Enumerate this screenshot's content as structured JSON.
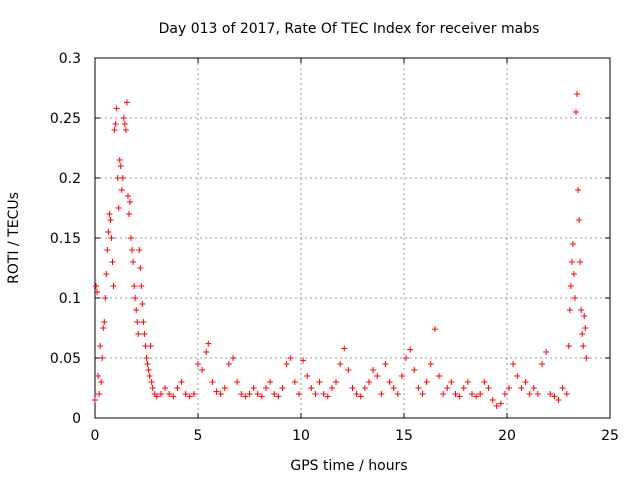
{
  "chart_data": {
    "type": "scatter",
    "title": "Day 013 of 2017, Rate Of TEC Index for receiver mabs",
    "xlabel": "GPS time / hours",
    "ylabel": "ROTI / TECUs",
    "xlim": [
      0,
      25
    ],
    "ylim": [
      0,
      0.3
    ],
    "xticks": [
      0,
      5,
      10,
      15,
      20,
      25
    ],
    "xtick_labels": [
      "0",
      "5",
      "10",
      "15",
      "20",
      "25"
    ],
    "yticks": [
      0,
      0.05,
      0.1,
      0.15,
      0.2,
      0.25,
      0.3
    ],
    "ytick_labels": [
      "0",
      "0.05",
      "0.1",
      "0.15",
      "0.2",
      "0.25",
      "0.3"
    ],
    "grid": true,
    "marker": "+",
    "series_color": "#ff0000",
    "series": [
      {
        "points": [
          [
            0.0,
            0.015
          ],
          [
            0.05,
            0.11
          ],
          [
            0.1,
            0.105
          ],
          [
            0.15,
            0.035
          ],
          [
            0.2,
            0.02
          ],
          [
            0.25,
            0.06
          ],
          [
            0.3,
            0.03
          ],
          [
            0.35,
            0.05
          ],
          [
            0.4,
            0.075
          ],
          [
            0.45,
            0.08
          ],
          [
            0.5,
            0.1
          ],
          [
            0.55,
            0.12
          ],
          [
            0.6,
            0.14
          ],
          [
            0.65,
            0.155
          ],
          [
            0.7,
            0.17
          ],
          [
            0.75,
            0.165
          ],
          [
            0.8,
            0.15
          ],
          [
            0.85,
            0.13
          ],
          [
            0.9,
            0.11
          ],
          [
            0.95,
            0.24
          ],
          [
            1.0,
            0.245
          ],
          [
            1.05,
            0.258
          ],
          [
            1.1,
            0.2
          ],
          [
            1.15,
            0.175
          ],
          [
            1.2,
            0.215
          ],
          [
            1.25,
            0.21
          ],
          [
            1.3,
            0.19
          ],
          [
            1.35,
            0.2
          ],
          [
            1.4,
            0.25
          ],
          [
            1.45,
            0.245
          ],
          [
            1.5,
            0.24
          ],
          [
            1.55,
            0.263
          ],
          [
            1.6,
            0.185
          ],
          [
            1.65,
            0.17
          ],
          [
            1.7,
            0.18
          ],
          [
            1.75,
            0.15
          ],
          [
            1.8,
            0.14
          ],
          [
            1.85,
            0.13
          ],
          [
            1.9,
            0.11
          ],
          [
            1.95,
            0.1
          ],
          [
            2.0,
            0.09
          ],
          [
            2.05,
            0.08
          ],
          [
            2.1,
            0.07
          ],
          [
            2.15,
            0.14
          ],
          [
            2.2,
            0.125
          ],
          [
            2.25,
            0.11
          ],
          [
            2.3,
            0.095
          ],
          [
            2.35,
            0.08
          ],
          [
            2.4,
            0.07
          ],
          [
            2.45,
            0.06
          ],
          [
            2.5,
            0.05
          ],
          [
            2.55,
            0.045
          ],
          [
            2.6,
            0.04
          ],
          [
            2.65,
            0.035
          ],
          [
            2.7,
            0.06
          ],
          [
            2.75,
            0.03
          ],
          [
            2.8,
            0.025
          ],
          [
            2.9,
            0.02
          ],
          [
            3.0,
            0.018
          ],
          [
            3.2,
            0.02
          ],
          [
            3.4,
            0.025
          ],
          [
            3.6,
            0.02
          ],
          [
            3.8,
            0.018
          ],
          [
            4.0,
            0.025
          ],
          [
            4.2,
            0.03
          ],
          [
            4.4,
            0.02
          ],
          [
            4.6,
            0.018
          ],
          [
            4.8,
            0.02
          ],
          [
            5.0,
            0.045
          ],
          [
            5.2,
            0.04
          ],
          [
            5.4,
            0.055
          ],
          [
            5.5,
            0.062
          ],
          [
            5.7,
            0.03
          ],
          [
            5.9,
            0.022
          ],
          [
            6.1,
            0.02
          ],
          [
            6.3,
            0.025
          ],
          [
            6.5,
            0.045
          ],
          [
            6.7,
            0.05
          ],
          [
            6.9,
            0.03
          ],
          [
            7.1,
            0.02
          ],
          [
            7.3,
            0.018
          ],
          [
            7.5,
            0.02
          ],
          [
            7.7,
            0.025
          ],
          [
            7.9,
            0.02
          ],
          [
            8.1,
            0.018
          ],
          [
            8.3,
            0.025
          ],
          [
            8.5,
            0.03
          ],
          [
            8.7,
            0.02
          ],
          [
            8.9,
            0.018
          ],
          [
            9.1,
            0.025
          ],
          [
            9.3,
            0.045
          ],
          [
            9.5,
            0.05
          ],
          [
            9.7,
            0.03
          ],
          [
            9.9,
            0.02
          ],
          [
            10.1,
            0.048
          ],
          [
            10.3,
            0.035
          ],
          [
            10.5,
            0.025
          ],
          [
            10.7,
            0.02
          ],
          [
            10.9,
            0.03
          ],
          [
            11.1,
            0.02
          ],
          [
            11.3,
            0.018
          ],
          [
            11.5,
            0.025
          ],
          [
            11.7,
            0.03
          ],
          [
            11.9,
            0.045
          ],
          [
            12.1,
            0.058
          ],
          [
            12.3,
            0.04
          ],
          [
            12.5,
            0.025
          ],
          [
            12.7,
            0.02
          ],
          [
            12.9,
            0.018
          ],
          [
            13.1,
            0.025
          ],
          [
            13.3,
            0.03
          ],
          [
            13.5,
            0.04
          ],
          [
            13.7,
            0.035
          ],
          [
            13.9,
            0.02
          ],
          [
            14.1,
            0.045
          ],
          [
            14.3,
            0.03
          ],
          [
            14.5,
            0.025
          ],
          [
            14.7,
            0.02
          ],
          [
            14.9,
            0.035
          ],
          [
            15.1,
            0.05
          ],
          [
            15.3,
            0.057
          ],
          [
            15.5,
            0.04
          ],
          [
            15.7,
            0.025
          ],
          [
            15.9,
            0.02
          ],
          [
            16.1,
            0.03
          ],
          [
            16.3,
            0.045
          ],
          [
            16.5,
            0.074
          ],
          [
            16.7,
            0.035
          ],
          [
            16.9,
            0.02
          ],
          [
            17.1,
            0.025
          ],
          [
            17.3,
            0.03
          ],
          [
            17.5,
            0.02
          ],
          [
            17.7,
            0.018
          ],
          [
            17.9,
            0.025
          ],
          [
            18.1,
            0.03
          ],
          [
            18.3,
            0.02
          ],
          [
            18.5,
            0.018
          ],
          [
            18.7,
            0.02
          ],
          [
            18.9,
            0.03
          ],
          [
            19.1,
            0.025
          ],
          [
            19.3,
            0.015
          ],
          [
            19.5,
            0.01
          ],
          [
            19.7,
            0.012
          ],
          [
            19.9,
            0.02
          ],
          [
            20.1,
            0.025
          ],
          [
            20.3,
            0.045
          ],
          [
            20.5,
            0.035
          ],
          [
            20.7,
            0.025
          ],
          [
            20.9,
            0.03
          ],
          [
            21.1,
            0.02
          ],
          [
            21.3,
            0.025
          ],
          [
            21.5,
            0.02
          ],
          [
            21.7,
            0.045
          ],
          [
            21.9,
            0.055
          ],
          [
            22.1,
            0.02
          ],
          [
            22.3,
            0.018
          ],
          [
            22.5,
            0.015
          ],
          [
            22.7,
            0.025
          ],
          [
            22.9,
            0.02
          ],
          [
            23.0,
            0.06
          ],
          [
            23.05,
            0.09
          ],
          [
            23.1,
            0.11
          ],
          [
            23.15,
            0.13
          ],
          [
            23.2,
            0.145
          ],
          [
            23.25,
            0.12
          ],
          [
            23.3,
            0.1
          ],
          [
            23.35,
            0.255
          ],
          [
            23.4,
            0.27
          ],
          [
            23.45,
            0.19
          ],
          [
            23.5,
            0.165
          ],
          [
            23.55,
            0.13
          ],
          [
            23.6,
            0.09
          ],
          [
            23.65,
            0.07
          ],
          [
            23.7,
            0.06
          ],
          [
            23.75,
            0.085
          ],
          [
            23.8,
            0.075
          ],
          [
            23.85,
            0.05
          ]
        ]
      }
    ]
  }
}
